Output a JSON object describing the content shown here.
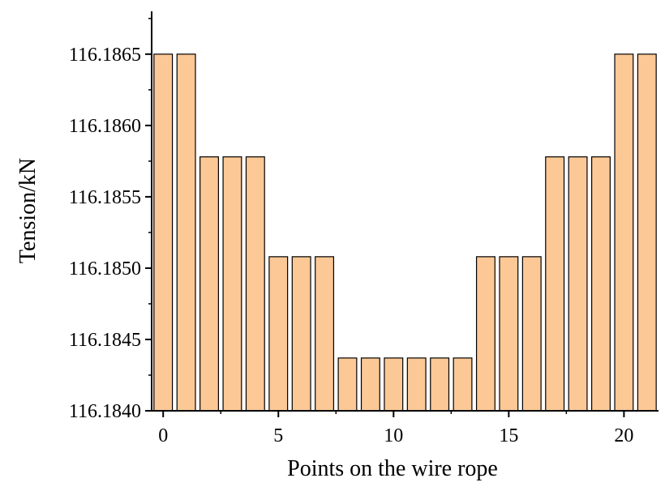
{
  "chart_data": {
    "type": "bar",
    "xlabel": "Points on the wire rope",
    "ylabel": "Tension/kN",
    "x": [
      0,
      1,
      2,
      3,
      4,
      5,
      6,
      7,
      8,
      9,
      10,
      11,
      12,
      13,
      14,
      15,
      16,
      17,
      18,
      19,
      20,
      21
    ],
    "values": [
      116.1865,
      116.1865,
      116.18578,
      116.18578,
      116.18578,
      116.18508,
      116.18508,
      116.18508,
      116.18437,
      116.18437,
      116.18437,
      116.18437,
      116.18437,
      116.18437,
      116.18508,
      116.18508,
      116.18508,
      116.18578,
      116.18578,
      116.18578,
      116.1865,
      116.1865
    ],
    "xlim": [
      -0.5,
      21.5
    ],
    "ylim": [
      116.184,
      116.1868
    ],
    "xticks": [
      0,
      5,
      10,
      15,
      20
    ],
    "xtick_labels": [
      "0",
      "5",
      "10",
      "15",
      "20"
    ],
    "yticks": [
      116.184,
      116.1845,
      116.185,
      116.1855,
      116.186,
      116.1865
    ],
    "ytick_labels": [
      "116.1840",
      "116.1845",
      "116.1850",
      "116.1855",
      "116.1860",
      "116.1865"
    ],
    "bar_color": "#fcc896",
    "edge_color": "#000000",
    "grid": false,
    "legend": "none"
  }
}
